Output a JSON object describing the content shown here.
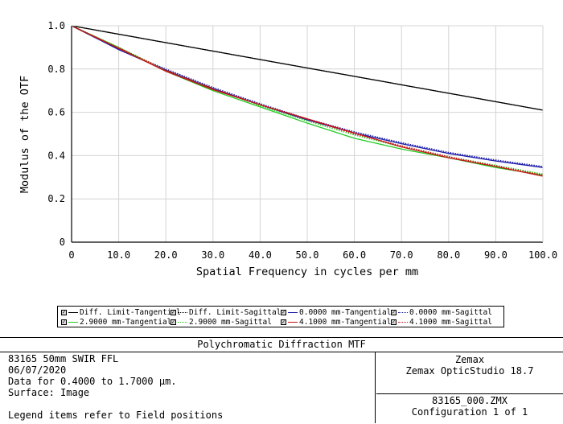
{
  "chart_data": {
    "type": "line",
    "title": "",
    "xlabel": "Spatial Frequency in cycles per mm",
    "ylabel": "Modulus of the OTF",
    "xlim": [
      0,
      100
    ],
    "ylim": [
      0,
      1
    ],
    "x_ticks": [
      "0",
      "10.0",
      "20.0",
      "30.0",
      "40.0",
      "50.0",
      "60.0",
      "70.0",
      "80.0",
      "90.0",
      "100.0"
    ],
    "y_ticks": [
      "0",
      "0.2",
      "0.4",
      "0.6",
      "0.8",
      "1.0"
    ],
    "grid": true,
    "x": [
      0,
      10,
      20,
      30,
      40,
      50,
      60,
      70,
      80,
      90,
      100
    ],
    "series": [
      {
        "name": "Diff. Limit-Tangential",
        "color": "#000000",
        "style": "solid",
        "values": [
          1.0,
          0.961,
          0.922,
          0.883,
          0.844,
          0.805,
          0.766,
          0.727,
          0.688,
          0.649,
          0.61
        ]
      },
      {
        "name": "Diff. Limit-Sagittal",
        "color": "#000000",
        "style": "dotted",
        "values": [
          1.0,
          0.961,
          0.922,
          0.883,
          0.844,
          0.805,
          0.766,
          0.727,
          0.688,
          0.649,
          0.61
        ]
      },
      {
        "name": "0.0000 mm-Tangential",
        "color": "#1a1aa8",
        "style": "solid",
        "values": [
          1.0,
          0.89,
          0.795,
          0.71,
          0.635,
          0.565,
          0.505,
          0.455,
          0.41,
          0.375,
          0.345
        ]
      },
      {
        "name": "0.0000 mm-Sagittal",
        "color": "#1a1aa8",
        "style": "dotted",
        "values": [
          1.0,
          0.892,
          0.8,
          0.715,
          0.64,
          0.57,
          0.51,
          0.46,
          0.415,
          0.38,
          0.35
        ]
      },
      {
        "name": "2.9000 mm-Tangential",
        "color": "#22cc22",
        "style": "solid",
        "values": [
          1.0,
          0.9,
          0.79,
          0.7,
          0.625,
          0.55,
          0.48,
          0.43,
          0.39,
          0.345,
          0.31
        ]
      },
      {
        "name": "2.9000 mm-Sagittal",
        "color": "#22cc22",
        "style": "dotted",
        "values": [
          1.0,
          0.9,
          0.795,
          0.71,
          0.63,
          0.56,
          0.495,
          0.44,
          0.395,
          0.355,
          0.315
        ]
      },
      {
        "name": "4.1000 mm-Tangential",
        "color": "#c81414",
        "style": "solid",
        "values": [
          1.0,
          0.895,
          0.79,
          0.705,
          0.635,
          0.57,
          0.505,
          0.44,
          0.39,
          0.35,
          0.305
        ]
      },
      {
        "name": "4.1000 mm-Sagittal",
        "color": "#c81414",
        "style": "dotted",
        "values": [
          1.0,
          0.898,
          0.795,
          0.71,
          0.635,
          0.568,
          0.5,
          0.445,
          0.395,
          0.352,
          0.31
        ]
      }
    ]
  },
  "info": {
    "title": "Polychromatic Diffraction MTF",
    "left_lines": [
      "83165 50mm SWIR FFL",
      "06/07/2020",
      "Data for 0.4000 to 1.7000 µm.",
      "Surface: Image",
      "",
      "Legend items refer to Field positions"
    ],
    "right_top": [
      "Zemax",
      "Zemax OpticStudio 18.7"
    ],
    "right_bottom": [
      "83165_000.ZMX",
      "Configuration 1 of 1"
    ]
  }
}
